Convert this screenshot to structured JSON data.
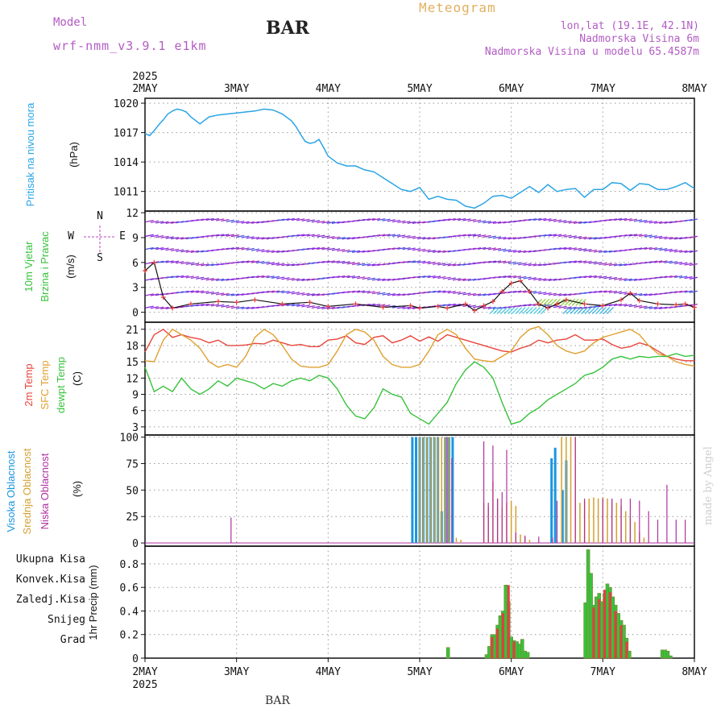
{
  "header": {
    "model_label": "Model",
    "model_name": "wrf-nmm_v3.9.1 e1km",
    "title": "BAR",
    "supertitle": "Meteogram",
    "location": [
      "lon,lat (19.1E, 42.1N)",
      "Nadmorska Visina 6m",
      "Nadmorska Visina u modelu 65.4587m"
    ],
    "footer_title": "BAR",
    "credit": "made by Angel"
  },
  "colors": {
    "pressure": "#2aa4e6",
    "t2m": "#e8463c",
    "sfc": "#e0a030",
    "dewpt": "#38c23c",
    "cloud_high": "#1a96e0",
    "cloud_mid": "#d4a030",
    "cloud_low": "#b030a0",
    "precip_total": "#38c23c",
    "precip_conv": "#e04040",
    "precip_fz": "#f08a30",
    "snow": "#4040e0",
    "grad": "#30c0c0",
    "axis_label_mag": "#c040c0",
    "precip_bar_edge": "#808030",
    "wind_line": "#111111",
    "wind_marker": "#e83c3c"
  },
  "x_axis": {
    "top_year": "2025",
    "bottom_year": "2025",
    "ticks": [
      "2MAY",
      "3MAY",
      "4MAY",
      "5MAY",
      "6MAY",
      "7MAY",
      "8MAY"
    ]
  },
  "panels": {
    "pressure": {
      "labels": [
        "Pritisak na nivou mora"
      ],
      "unit": "(hPa)"
    },
    "wind": {
      "labels": [
        "10m Vjetar",
        "Brzina i Pravac"
      ],
      "unit": "(m/s)",
      "compass": [
        "N",
        "E",
        "S",
        "W"
      ]
    },
    "temp": {
      "labels": [
        "2m Temp",
        "SFC Temp",
        "dewpt Temp"
      ],
      "unit": "(C)"
    },
    "cloud": {
      "labels": [
        "Visoka Oblacnost",
        "Srednja Oblacnost",
        "Niska Oblacnost"
      ],
      "unit": "(%)"
    },
    "precip": {
      "labels": [
        "Ukupna Kisa",
        "Konvek.Kisa",
        "Zaledj.Kisa",
        "Snijeg",
        "Grad"
      ],
      "unit": "1hr Precip (mm)"
    }
  },
  "chart_data": [
    {
      "type": "line",
      "name": "pressure",
      "ylabel": "Pritisak na nivou mora (hPa)",
      "ylim": [
        1009,
        1020.5
      ],
      "yticks": [
        1011,
        1014,
        1017,
        1020
      ],
      "x_days": [
        0,
        0.05,
        0.1,
        0.15,
        0.2,
        0.25,
        0.3,
        0.35,
        0.4,
        0.45,
        0.5,
        0.6,
        0.7,
        0.8,
        0.9,
        1.0,
        1.1,
        1.2,
        1.3,
        1.4,
        1.5,
        1.6,
        1.65,
        1.7,
        1.75,
        1.8,
        1.85,
        1.9,
        1.95,
        2.0,
        2.1,
        2.2,
        2.3,
        2.4,
        2.5,
        2.6,
        2.7,
        2.8,
        2.9,
        3.0,
        3.1,
        3.2,
        3.3,
        3.4,
        3.5,
        3.6,
        3.7,
        3.8,
        3.9,
        4.0,
        4.1,
        4.2,
        4.3,
        4.4,
        4.5,
        4.6,
        4.7,
        4.8,
        4.9,
        5.0,
        5.1,
        5.2,
        5.3,
        5.4,
        5.5,
        5.6,
        5.7,
        5.8,
        5.9,
        6.0
      ],
      "values": [
        1016.9,
        1016.7,
        1017.2,
        1017.8,
        1018.3,
        1018.9,
        1019.2,
        1019.4,
        1019.3,
        1019.1,
        1018.6,
        1017.9,
        1018.6,
        1018.8,
        1018.9,
        1019.0,
        1019.1,
        1019.2,
        1019.4,
        1019.3,
        1018.9,
        1018.2,
        1017.6,
        1016.8,
        1016.1,
        1015.9,
        1016.0,
        1016.3,
        1015.5,
        1014.6,
        1013.9,
        1013.6,
        1013.6,
        1013.2,
        1013.0,
        1012.4,
        1011.8,
        1011.2,
        1011.0,
        1011.4,
        1010.2,
        1010.5,
        1010.2,
        1010.1,
        1009.5,
        1009.3,
        1009.8,
        1010.5,
        1010.6,
        1010.3,
        1010.9,
        1011.5,
        1010.9,
        1011.7,
        1011.0,
        1011.2,
        1011.3,
        1010.4,
        1011.2,
        1011.2,
        1011.9,
        1011.8,
        1011.1,
        1011.8,
        1011.7,
        1011.2,
        1011.2,
        1011.5,
        1011.9,
        1011.3
      ]
    },
    {
      "type": "line",
      "name": "wind",
      "ylabel": "10m Vjetar Brzina i Pravac (m/s)",
      "ylim": [
        -1.2,
        12.2
      ],
      "yticks": [
        0,
        3,
        6,
        9,
        12
      ],
      "x_days": [
        0,
        0.1,
        0.2,
        0.3,
        0.5,
        0.8,
        1.0,
        1.2,
        1.5,
        1.8,
        2.0,
        2.3,
        2.6,
        2.9,
        3.0,
        3.2,
        3.3,
        3.5,
        3.6,
        3.7,
        3.8,
        3.9,
        4.0,
        4.1,
        4.2,
        4.3,
        4.4,
        4.5,
        4.6,
        4.8,
        5.0,
        5.2,
        5.3,
        5.4,
        5.6,
        5.8,
        5.9,
        6.0
      ],
      "speed": [
        5.0,
        6.0,
        1.8,
        0.5,
        1.0,
        1.3,
        1.2,
        1.5,
        1.0,
        1.2,
        0.7,
        1.0,
        0.6,
        0.8,
        0.5,
        0.7,
        0.5,
        1.0,
        0.2,
        0.8,
        1.3,
        2.5,
        3.5,
        3.8,
        2.5,
        1.0,
        0.5,
        1.0,
        1.5,
        1.0,
        0.8,
        1.5,
        2.3,
        1.4,
        1.0,
        0.9,
        1.0,
        0.6
      ]
    },
    {
      "type": "line",
      "name": "temperature",
      "ylabel": "Temp (C)",
      "ylim": [
        1.5,
        22.3
      ],
      "yticks": [
        3,
        6,
        9,
        12,
        15,
        18,
        21
      ],
      "x_days": [
        0,
        0.1,
        0.2,
        0.3,
        0.4,
        0.5,
        0.6,
        0.7,
        0.8,
        0.9,
        1.0,
        1.1,
        1.2,
        1.3,
        1.4,
        1.5,
        1.6,
        1.7,
        1.8,
        1.9,
        2.0,
        2.1,
        2.2,
        2.3,
        2.4,
        2.5,
        2.6,
        2.7,
        2.8,
        2.9,
        3.0,
        3.1,
        3.2,
        3.3,
        3.4,
        3.5,
        3.6,
        3.7,
        3.8,
        3.9,
        4.0,
        4.1,
        4.2,
        4.3,
        4.4,
        4.5,
        4.6,
        4.7,
        4.8,
        4.9,
        5.0,
        5.1,
        5.2,
        5.3,
        5.4,
        5.5,
        5.6,
        5.7,
        5.8,
        5.9,
        6.0
      ],
      "series": [
        {
          "name": "2m Temp",
          "values": [
            16.8,
            20.0,
            21.0,
            19.5,
            20.0,
            19.5,
            19.2,
            18.5,
            19.0,
            18.0,
            18.0,
            18.1,
            18.4,
            18.3,
            19.0,
            18.5,
            18.0,
            18.2,
            17.8,
            17.8,
            19.0,
            19.2,
            19.8,
            18.5,
            18.2,
            19.5,
            19.8,
            18.5,
            19.0,
            19.8,
            18.8,
            19.6,
            18.8,
            20.0,
            19.5,
            19.0,
            18.5,
            18.0,
            17.5,
            17.0,
            16.8,
            17.5,
            18.0,
            19.0,
            18.5,
            19.0,
            19.2,
            20.0,
            19.0,
            19.0,
            19.2,
            18.2,
            17.5,
            17.8,
            18.5,
            18.0,
            17.0,
            16.0,
            15.5,
            15.2,
            15.2
          ]
        },
        {
          "name": "SFC Temp",
          "values": [
            15.2,
            15.0,
            19.0,
            21.0,
            20.0,
            19.0,
            17.5,
            15.0,
            14.0,
            14.5,
            14.0,
            16.0,
            19.5,
            21.0,
            20.0,
            18.0,
            15.5,
            14.2,
            14.0,
            14.0,
            14.5,
            17.0,
            20.0,
            21.0,
            20.5,
            19.0,
            16.0,
            14.5,
            14.0,
            14.0,
            14.5,
            17.0,
            20.0,
            21.0,
            20.0,
            17.5,
            15.5,
            15.2,
            15.0,
            16.0,
            17.0,
            19.5,
            21.0,
            21.5,
            20.0,
            18.0,
            17.0,
            16.5,
            17.0,
            18.5,
            19.5,
            20.0,
            20.5,
            21.0,
            20.0,
            18.0,
            16.5,
            16.0,
            15.0,
            14.5,
            14.2
          ]
        },
        {
          "name": "dewpt Temp",
          "values": [
            14.0,
            9.5,
            10.5,
            9.5,
            12.0,
            10.0,
            9.0,
            10.0,
            11.5,
            10.5,
            12.0,
            11.5,
            11.0,
            10.0,
            11.0,
            10.5,
            11.5,
            12.0,
            11.5,
            12.5,
            12.0,
            10.0,
            7.0,
            5.0,
            4.5,
            6.5,
            10.0,
            9.0,
            8.5,
            5.5,
            4.5,
            3.5,
            5.5,
            7.5,
            11.0,
            13.5,
            15.0,
            14.0,
            12.0,
            7.5,
            3.5,
            4.0,
            5.5,
            6.5,
            8.0,
            9.0,
            10.0,
            11.0,
            12.5,
            13.0,
            14.0,
            15.5,
            16.0,
            15.5,
            16.0,
            15.8,
            16.0,
            16.0,
            16.5,
            16.0,
            16.2
          ]
        }
      ]
    },
    {
      "type": "bar",
      "name": "cloud",
      "ylabel": "Oblacnost (%)",
      "ylim": [
        -3,
        102
      ],
      "yticks": [
        0,
        25,
        50,
        75,
        100
      ],
      "series": [
        {
          "name": "Visoka Oblacnost",
          "x_days": [
            2.92,
            2.96,
            3.0,
            3.04,
            3.08,
            3.12,
            3.16,
            3.2,
            3.24,
            3.28,
            3.32,
            3.36,
            3.4,
            3.44,
            3.48,
            3.52,
            3.56,
            3.6,
            3.64,
            3.68,
            3.72,
            3.76,
            3.8,
            3.84,
            3.88,
            3.92,
            3.96,
            4.0,
            4.04,
            4.08,
            4.12,
            4.16,
            4.2,
            4.24,
            4.28,
            4.32,
            4.36,
            4.4,
            4.44,
            4.48,
            4.52,
            4.56,
            4.6,
            4.64,
            4.68,
            4.72,
            4.76,
            4.8,
            4.84,
            4.88,
            4.92,
            4.96,
            5.0,
            5.04,
            5.08,
            5.12,
            5.16,
            5.2,
            5.24,
            5.28,
            5.32,
            5.36,
            5.4
          ],
          "values": [
            100,
            100,
            100,
            100,
            100,
            100,
            100,
            100,
            30,
            100,
            100,
            100,
            0,
            0,
            0,
            0,
            0,
            0,
            0,
            0,
            0,
            0,
            0,
            0,
            0,
            0,
            0,
            0,
            0,
            0,
            0,
            0,
            0,
            0,
            0,
            0,
            0,
            0,
            80,
            90,
            0,
            50,
            78,
            0,
            0,
            0,
            0,
            0,
            0,
            0,
            0,
            0,
            0,
            0,
            0,
            0,
            0,
            0,
            0,
            0,
            0,
            0,
            0
          ]
        },
        {
          "name": "Srednja Oblacnost",
          "x_days": [
            3.0,
            3.04,
            3.08,
            3.12,
            3.16,
            3.2,
            3.24,
            3.28,
            3.32,
            3.4,
            3.45,
            3.7,
            3.75,
            3.8,
            3.85,
            3.9,
            3.95,
            4.0,
            4.05,
            4.1,
            4.15,
            4.2,
            4.25,
            4.3,
            4.35,
            4.4,
            4.45,
            4.5,
            4.55,
            4.6,
            4.65,
            4.7,
            4.75,
            4.8,
            4.85,
            4.9,
            4.95,
            5.0,
            5.05,
            5.1,
            5.15,
            5.2,
            5.25,
            5.3,
            5.35,
            5.4,
            5.45,
            5.5
          ],
          "values": [
            100,
            100,
            100,
            100,
            100,
            100,
            100,
            100,
            100,
            5,
            3,
            38,
            35,
            58,
            42,
            33,
            38,
            40,
            35,
            8,
            6,
            3,
            0,
            0,
            0,
            0,
            0,
            0,
            100,
            100,
            100,
            100,
            38,
            40,
            42,
            43,
            42,
            43,
            42,
            40,
            38,
            35,
            30,
            25,
            20,
            10,
            5,
            0
          ]
        },
        {
          "name": "Niska Oblacnost",
          "x_days": [
            0.94,
            3.3,
            3.35,
            3.7,
            3.75,
            3.8,
            3.85,
            3.9,
            3.95,
            4.05,
            4.15,
            4.3,
            4.45,
            4.5,
            4.7,
            4.8,
            5.0,
            5.1,
            5.2,
            5.3,
            5.4,
            5.5,
            5.6,
            5.7,
            5.8,
            5.9
          ],
          "values": [
            24,
            100,
            80,
            96,
            38,
            92,
            42,
            48,
            88,
            10,
            7,
            6,
            5,
            40,
            100,
            42,
            42,
            42,
            42,
            42,
            40,
            30,
            22,
            55,
            22,
            22
          ]
        }
      ]
    },
    {
      "type": "bar",
      "name": "precip",
      "ylabel": "1hr Precip (mm)",
      "ylim": [
        0,
        0.95
      ],
      "yticks": [
        0,
        0.2,
        0.4,
        0.6,
        0.8
      ],
      "series": [
        {
          "name": "Ukupna Kisa",
          "x_days": [
            3.31,
            3.73,
            3.76,
            3.79,
            3.82,
            3.85,
            3.88,
            3.91,
            3.94,
            3.97,
            4.0,
            4.03,
            4.06,
            4.09,
            4.12,
            4.15,
            4.18,
            4.21,
            4.24,
            4.27,
            4.3,
            4.81,
            4.84,
            4.87,
            4.9,
            4.93,
            4.96,
            4.99,
            5.02,
            5.05,
            5.08,
            5.11,
            5.14,
            5.17,
            5.2,
            5.23,
            5.26,
            5.29,
            5.32,
            5.35,
            5.38,
            5.65,
            5.68,
            5.71,
            5.74
          ],
          "values": [
            0.09,
            0.03,
            0.1,
            0.2,
            0.2,
            0.28,
            0.36,
            0.4,
            0.62,
            0.48,
            0.18,
            0.15,
            0.14,
            0.12,
            0.16,
            0.06,
            0.05,
            0.0,
            0.0,
            0.0,
            0.0,
            0.47,
            0.92,
            0.72,
            0.45,
            0.52,
            0.55,
            0.48,
            0.55,
            0.63,
            0.6,
            0.52,
            0.45,
            0.38,
            0.32,
            0.28,
            0.17,
            0.06,
            0.0,
            0.0,
            0.0,
            0.07,
            0.07,
            0.06,
            0.02
          ]
        },
        {
          "name": "Konvek.Kisa",
          "x_days": [
            3.79,
            3.85,
            3.91,
            3.97,
            4.03,
            4.9,
            4.96,
            5.02,
            5.08,
            5.14,
            5.2,
            5.26
          ],
          "values": [
            0.18,
            0.25,
            0.38,
            0.62,
            0.14,
            0.43,
            0.5,
            0.58,
            0.56,
            0.4,
            0.28,
            0.14
          ]
        }
      ]
    }
  ]
}
